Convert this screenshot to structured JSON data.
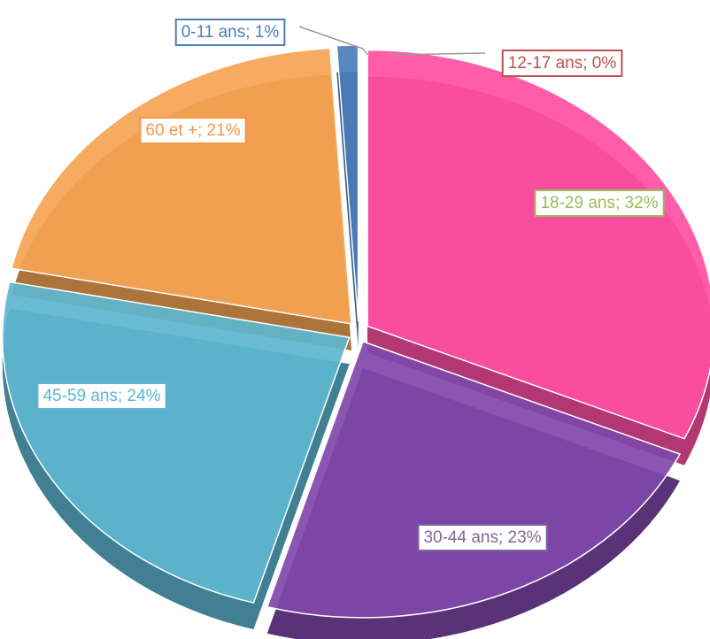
{
  "chart_data": {
    "type": "pie",
    "values": [
      1,
      0,
      32,
      23,
      24,
      21
    ],
    "value_labels": [
      "0-11 ans; 1%",
      "12-17 ans; 0%",
      "18-29 ans; 32%",
      "30-44 ans; 23%",
      "45-59 ans; 24%",
      "60 et +; 21%"
    ],
    "colors": [
      "#4a7ebb",
      "#c0504d",
      "#ff4fa3",
      "#8048aa",
      "#5db6d0",
      "#f5a453"
    ],
    "label_border_colors": [
      "#4a7ebb",
      "#c0504d",
      "#9bbb59",
      "#8064a2",
      "#5db6d0",
      "#f79646"
    ],
    "label_text_colors": [
      "#4a7ebb",
      "#c0504d",
      "#9bbb59",
      "#7f6a96",
      "#5db6d0",
      "#f79646"
    ]
  }
}
